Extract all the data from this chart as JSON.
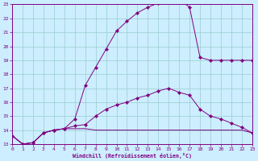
{
  "xlabel": "Windchill (Refroidissement éolien,°C)",
  "bg_color": "#cceeff",
  "line_color": "#800080",
  "grid_color": "#99cccc",
  "xlim": [
    0,
    23
  ],
  "ylim": [
    13,
    23
  ],
  "yticks": [
    13,
    14,
    15,
    16,
    17,
    18,
    19,
    20,
    21,
    22,
    23
  ],
  "xticks": [
    0,
    1,
    2,
    3,
    4,
    5,
    6,
    7,
    8,
    9,
    10,
    11,
    12,
    13,
    14,
    15,
    16,
    17,
    18,
    19,
    20,
    21,
    22,
    23
  ],
  "line1_x": [
    0,
    1,
    2,
    3,
    4,
    5,
    6,
    7,
    8,
    9,
    10,
    11,
    12,
    13,
    14,
    15,
    16,
    17,
    18,
    19,
    20,
    21,
    22,
    23
  ],
  "line1_y": [
    13.6,
    13.0,
    13.1,
    13.8,
    14.0,
    14.1,
    14.8,
    17.2,
    18.5,
    19.8,
    21.1,
    21.8,
    22.4,
    22.8,
    23.1,
    23.35,
    23.35,
    22.8,
    19.2,
    19.0,
    19.0,
    19.0,
    19.0,
    19.0
  ],
  "line1_has_markers": true,
  "line2_x": [
    0,
    1,
    2,
    3,
    4,
    5,
    6,
    7,
    8,
    9,
    10,
    11,
    12,
    13,
    14,
    15,
    16,
    17,
    18,
    19,
    20,
    21,
    22,
    23
  ],
  "line2_y": [
    13.6,
    13.0,
    13.1,
    13.8,
    14.0,
    14.1,
    14.3,
    14.4,
    15.0,
    15.5,
    15.8,
    16.0,
    16.3,
    16.5,
    16.8,
    17.0,
    16.7,
    16.5,
    15.5,
    15.0,
    14.8,
    14.5,
    14.2,
    13.8
  ],
  "line2_has_markers": true,
  "line3_x": [
    0,
    1,
    2,
    3,
    4,
    5,
    6,
    7,
    8,
    9,
    10,
    11,
    12,
    13,
    14,
    15,
    16,
    17,
    18,
    19,
    20,
    21,
    22,
    23
  ],
  "line3_y": [
    13.6,
    13.0,
    13.1,
    13.8,
    14.0,
    14.1,
    14.1,
    14.1,
    14.0,
    14.0,
    14.0,
    14.0,
    14.0,
    14.0,
    14.0,
    14.0,
    14.0,
    14.0,
    14.0,
    14.0,
    14.0,
    14.0,
    14.0,
    13.8
  ],
  "line3_has_markers": false
}
